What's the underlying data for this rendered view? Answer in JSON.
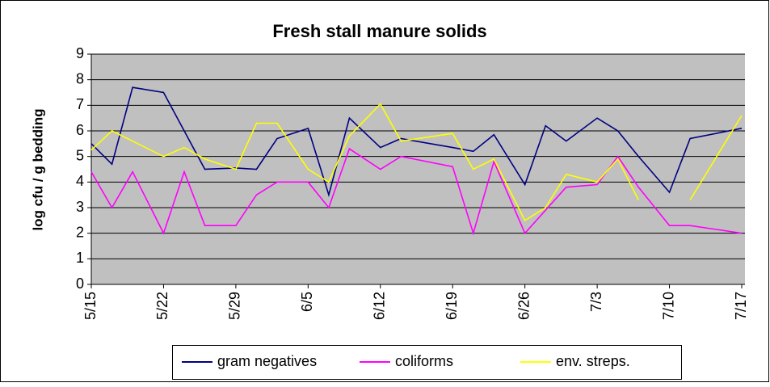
{
  "chart_data": {
    "type": "line",
    "title": "Fresh stall manure solids",
    "y_label": "log cfu / g bedding",
    "x": [
      "5/15",
      "5/17",
      "5/19",
      "5/22",
      "5/24",
      "5/26",
      "5/29",
      "5/31",
      "6/2",
      "6/5",
      "6/7",
      "6/9",
      "6/12",
      "6/14",
      "6/19",
      "6/21",
      "6/23",
      "6/26",
      "6/28",
      "6/30",
      "7/3",
      "7/5",
      "7/7",
      "7/10",
      "7/12",
      "7/17"
    ],
    "xlim": [
      "5/15",
      "7/17"
    ],
    "xticks": [
      "5/15",
      "5/22",
      "5/29",
      "6/5",
      "6/12",
      "6/19",
      "6/26",
      "7/3",
      "7/10",
      "7/17"
    ],
    "ylim": [
      0,
      9
    ],
    "yticks": [
      0,
      1,
      2,
      3,
      4,
      5,
      6,
      7,
      8,
      9
    ],
    "grid": true,
    "legend": "bottom",
    "series": [
      {
        "name": "gram negatives",
        "color": "#000080",
        "values": [
          5.5,
          4.7,
          7.7,
          7.5,
          6.0,
          4.5,
          4.55,
          4.5,
          5.7,
          6.1,
          3.5,
          6.5,
          5.35,
          5.7,
          5.35,
          5.2,
          5.85,
          3.9,
          6.2,
          5.6,
          6.5,
          6.0,
          5.0,
          3.6,
          5.7,
          6.1
        ]
      },
      {
        "name": "coliforms",
        "color": "#ff00ff",
        "values": [
          4.4,
          3.0,
          4.4,
          2.0,
          4.4,
          2.3,
          2.3,
          3.5,
          4.0,
          4.0,
          3.0,
          5.3,
          4.5,
          5.0,
          4.6,
          2.0,
          4.8,
          2.0,
          2.9,
          3.8,
          3.9,
          5.0,
          3.8,
          2.3,
          2.3,
          2.0
        ]
      },
      {
        "name": "env. streps.",
        "color": "#ffff00",
        "values": [
          5.25,
          6.0,
          5.6,
          5.0,
          5.35,
          4.9,
          4.5,
          6.3,
          6.3,
          4.5,
          4.0,
          5.8,
          7.05,
          5.6,
          5.9,
          4.5,
          4.9,
          2.5,
          3.0,
          4.3,
          4.0,
          4.9,
          3.3,
          null,
          3.3,
          6.6
        ]
      }
    ]
  }
}
